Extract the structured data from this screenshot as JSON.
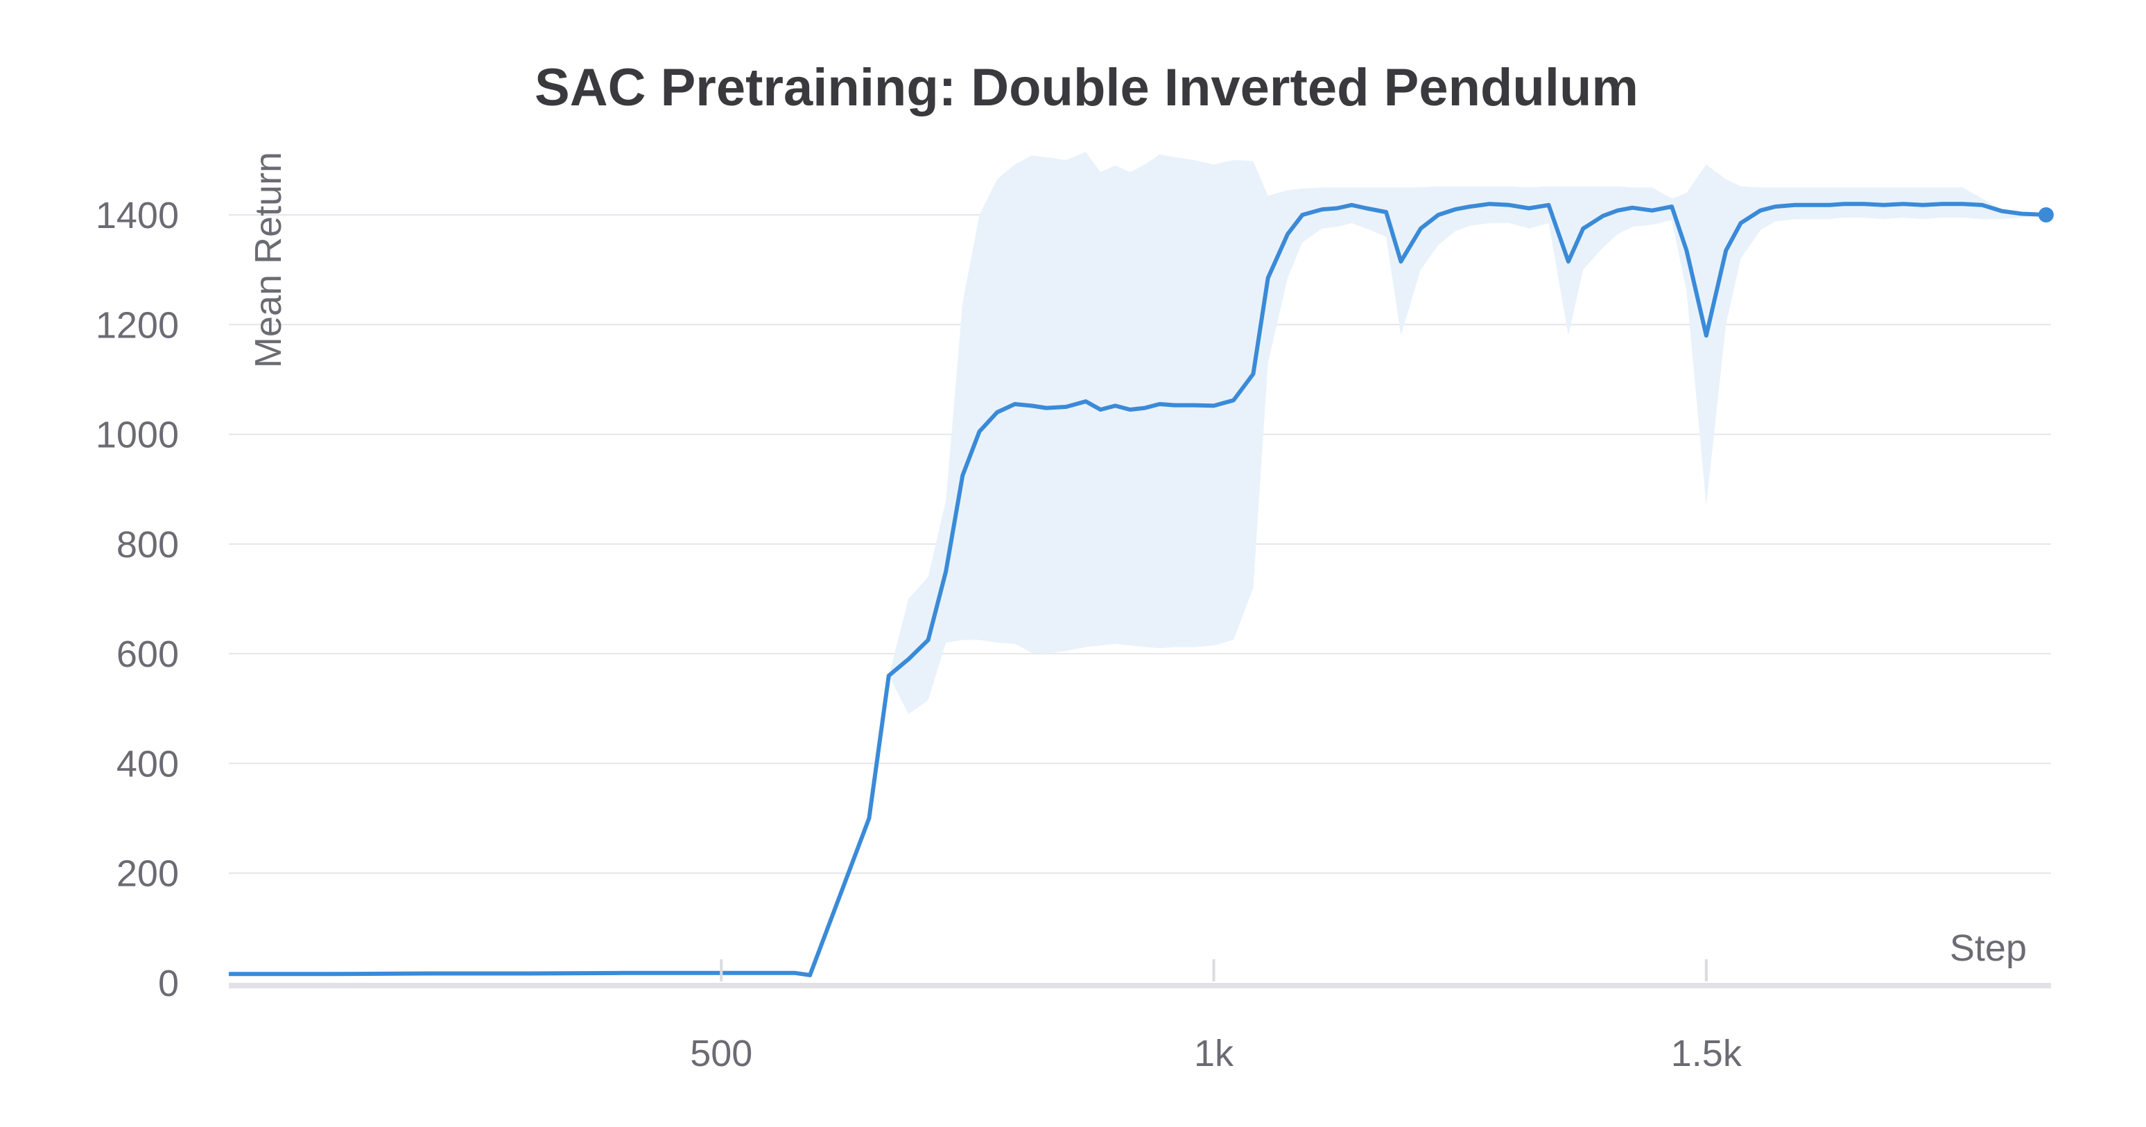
{
  "chart_data": {
    "type": "line",
    "title": "SAC Pretraining: Double Inverted Pendulum",
    "xlabel": "Step",
    "ylabel": "Mean Return",
    "xlim": [
      0,
      1850
    ],
    "ylim": [
      0,
      1500
    ],
    "yticks": [
      0,
      200,
      400,
      600,
      800,
      1000,
      1200,
      1400
    ],
    "xticks": [
      500,
      1000,
      1500
    ],
    "xtick_labels": [
      "500",
      "1k",
      "1.5k"
    ],
    "grid": true,
    "colors": {
      "line": "#3a8ad8",
      "band": "#e9f2fb",
      "marker": "#3a8ad8"
    },
    "series": [
      {
        "x": [
          0,
          100,
          200,
          300,
          400,
          500,
          560,
          575,
          590,
          650,
          670,
          690,
          710,
          728,
          745,
          762,
          780,
          798,
          815,
          830,
          850,
          870,
          885,
          900,
          915,
          930,
          945,
          960,
          980,
          1000,
          1020,
          1040,
          1055,
          1075,
          1090,
          1110,
          1125,
          1140,
          1155,
          1175,
          1190,
          1210,
          1228,
          1245,
          1260,
          1280,
          1300,
          1320,
          1340,
          1360,
          1375,
          1395,
          1410,
          1425,
          1445,
          1465,
          1480,
          1500,
          1520,
          1535,
          1555,
          1570,
          1590,
          1605,
          1625,
          1640,
          1660,
          1680,
          1700,
          1720,
          1740,
          1760,
          1780,
          1800,
          1820,
          1845
        ],
        "values": [
          16,
          16,
          17,
          17,
          18,
          18,
          18,
          18,
          14,
          300,
          560,
          590,
          625,
          750,
          925,
          1005,
          1040,
          1055,
          1052,
          1048,
          1050,
          1060,
          1045,
          1052,
          1045,
          1048,
          1055,
          1053,
          1053,
          1052,
          1062,
          1110,
          1285,
          1365,
          1400,
          1410,
          1412,
          1418,
          1412,
          1405,
          1315,
          1375,
          1400,
          1410,
          1415,
          1420,
          1418,
          1412,
          1418,
          1315,
          1375,
          1398,
          1408,
          1413,
          1408,
          1415,
          1335,
          1180,
          1335,
          1385,
          1408,
          1415,
          1418,
          1418,
          1418,
          1420,
          1420,
          1418,
          1420,
          1418,
          1420,
          1420,
          1418,
          1407,
          1402,
          1400
        ],
        "upper": [
          16,
          16,
          17,
          17,
          18,
          18,
          18,
          18,
          14,
          300,
          560,
          700,
          740,
          880,
          1240,
          1400,
          1465,
          1492,
          1508,
          1505,
          1500,
          1515,
          1478,
          1490,
          1478,
          1492,
          1510,
          1505,
          1500,
          1492,
          1500,
          1498,
          1435,
          1445,
          1448,
          1450,
          1450,
          1450,
          1450,
          1450,
          1450,
          1450,
          1452,
          1452,
          1452,
          1452,
          1452,
          1450,
          1452,
          1452,
          1452,
          1452,
          1452,
          1450,
          1450,
          1430,
          1440,
          1492,
          1465,
          1452,
          1450,
          1450,
          1450,
          1450,
          1450,
          1450,
          1450,
          1450,
          1450,
          1450,
          1450,
          1450,
          1430,
          1410,
          1402,
          1400
        ],
        "lower": [
          16,
          16,
          17,
          17,
          18,
          18,
          18,
          18,
          14,
          300,
          560,
          490,
          515,
          620,
          625,
          625,
          620,
          618,
          602,
          600,
          605,
          612,
          615,
          618,
          615,
          612,
          610,
          612,
          612,
          615,
          625,
          720,
          1130,
          1285,
          1350,
          1375,
          1378,
          1385,
          1375,
          1360,
          1180,
          1300,
          1345,
          1370,
          1380,
          1385,
          1385,
          1375,
          1385,
          1180,
          1300,
          1340,
          1365,
          1378,
          1382,
          1390,
          1260,
          870,
          1200,
          1320,
          1372,
          1388,
          1392,
          1392,
          1392,
          1395,
          1395,
          1392,
          1395,
          1392,
          1395,
          1395,
          1392,
          1392,
          1395,
          1400
        ]
      }
    ]
  }
}
